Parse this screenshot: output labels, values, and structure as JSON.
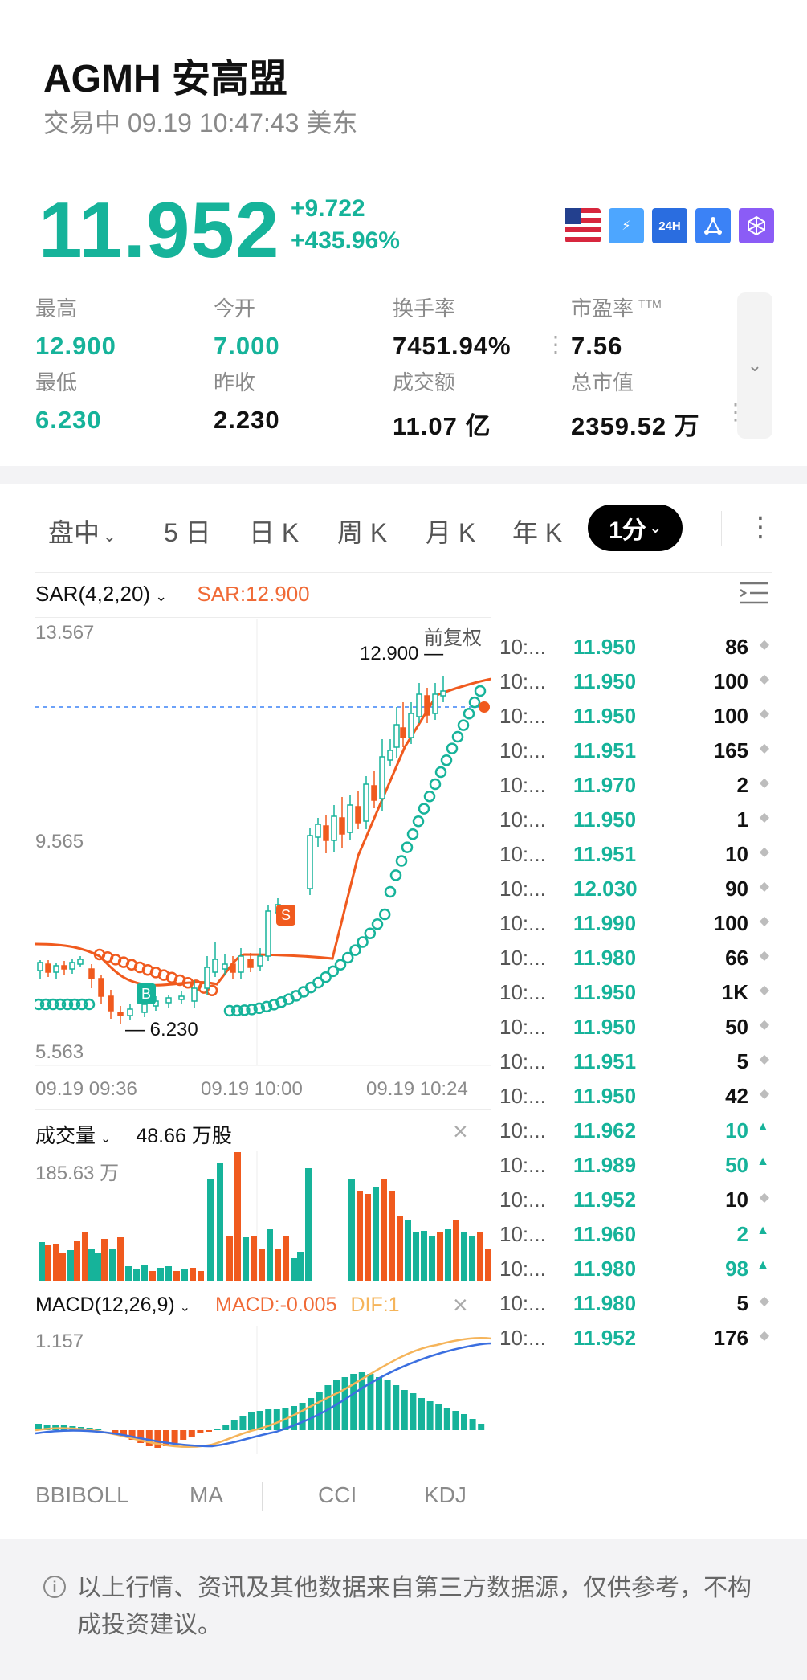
{
  "header": {
    "title": "AGMH 安高盟",
    "status": "交易中 09.19 10:47:43 美东"
  },
  "quote": {
    "price": "11.952",
    "change": "+9.722",
    "change_pct": "+435.96%",
    "badges": [
      "us-flag-icon",
      "lightning-icon",
      "24h-icon",
      "network-icon",
      "cube-icon"
    ],
    "badge_24h": "24H"
  },
  "stats": [
    {
      "label": "最高",
      "value": "12.900",
      "color": "green"
    },
    {
      "label": "今开",
      "value": "7.000",
      "color": "green"
    },
    {
      "label": "换手率",
      "value": "7451.94%",
      "color": "black"
    },
    {
      "label": "市盈率",
      "value": "7.56",
      "color": "black",
      "sup": "TTM"
    },
    {
      "label": "最低",
      "value": "6.230",
      "color": "green"
    },
    {
      "label": "昨收",
      "value": "2.230",
      "color": "black"
    },
    {
      "label": "成交额",
      "value": "11.07 亿",
      "color": "black"
    },
    {
      "label": "总市值",
      "value": "2359.52 万",
      "color": "black"
    }
  ],
  "tabs": {
    "items": [
      "盘中",
      "5 日",
      "日 K",
      "周 K",
      "月 K",
      "年 K"
    ],
    "active": "1分"
  },
  "indicator": {
    "name": "SAR(4,2,20)",
    "value": "SAR:12.900"
  },
  "main_chart": {
    "y_top": "13.567",
    "y_mid": "9.565",
    "y_bottom": "5.563",
    "adjust_label": "前复权",
    "high_label": "12.900",
    "low_label": "6.230",
    "b_marker": "B",
    "s_marker": "S",
    "x_labels": [
      "09.19 09:36",
      "09.19 10:00",
      "09.19 10:24"
    ]
  },
  "volume": {
    "label": "成交量",
    "value": "48.66 万股",
    "max": "185.63 万"
  },
  "macd": {
    "label": "MACD(12,26,9)",
    "macd_val": "MACD:-0.005",
    "dif_val": "DIF:1",
    "max": "1.157"
  },
  "bottom_tabs": [
    "BBIBOLL",
    "MA",
    "CCI",
    "KDJ"
  ],
  "trades": [
    {
      "time": "10:...",
      "price": "11.950",
      "vol": "86",
      "dir": "neutral"
    },
    {
      "time": "10:...",
      "price": "11.950",
      "vol": "100",
      "dir": "neutral"
    },
    {
      "time": "10:...",
      "price": "11.950",
      "vol": "100",
      "dir": "neutral"
    },
    {
      "time": "10:...",
      "price": "11.951",
      "vol": "165",
      "dir": "neutral"
    },
    {
      "time": "10:...",
      "price": "11.970",
      "vol": "2",
      "dir": "neutral"
    },
    {
      "time": "10:...",
      "price": "11.950",
      "vol": "1",
      "dir": "neutral"
    },
    {
      "time": "10:...",
      "price": "11.951",
      "vol": "10",
      "dir": "neutral"
    },
    {
      "time": "10:...",
      "price": "12.030",
      "vol": "90",
      "dir": "neutral"
    },
    {
      "time": "10:...",
      "price": "11.990",
      "vol": "100",
      "dir": "neutral"
    },
    {
      "time": "10:...",
      "price": "11.980",
      "vol": "66",
      "dir": "neutral"
    },
    {
      "time": "10:...",
      "price": "11.950",
      "vol": "1K",
      "dir": "neutral"
    },
    {
      "time": "10:...",
      "price": "11.950",
      "vol": "50",
      "dir": "neutral"
    },
    {
      "time": "10:...",
      "price": "11.951",
      "vol": "5",
      "dir": "neutral"
    },
    {
      "time": "10:...",
      "price": "11.950",
      "vol": "42",
      "dir": "neutral"
    },
    {
      "time": "10:...",
      "price": "11.962",
      "vol": "10",
      "dir": "up"
    },
    {
      "time": "10:...",
      "price": "11.989",
      "vol": "50",
      "dir": "up"
    },
    {
      "time": "10:...",
      "price": "11.952",
      "vol": "10",
      "dir": "neutral"
    },
    {
      "time": "10:...",
      "price": "11.960",
      "vol": "2",
      "dir": "up"
    },
    {
      "time": "10:...",
      "price": "11.980",
      "vol": "98",
      "dir": "up"
    },
    {
      "time": "10:...",
      "price": "11.980",
      "vol": "5",
      "dir": "neutral"
    },
    {
      "time": "10:...",
      "price": "11.952",
      "vol": "176",
      "dir": "neutral"
    }
  ],
  "footer": {
    "disclaimer": "以上行情、资讯及其他数据来自第三方数据源，仅供参考，不构成投资建议。"
  },
  "colors": {
    "up": "#16b39a",
    "down": "#f05a1e",
    "sar": "#f06a36",
    "dif": "#f5b45a",
    "dea": "#3b6fe0"
  }
}
